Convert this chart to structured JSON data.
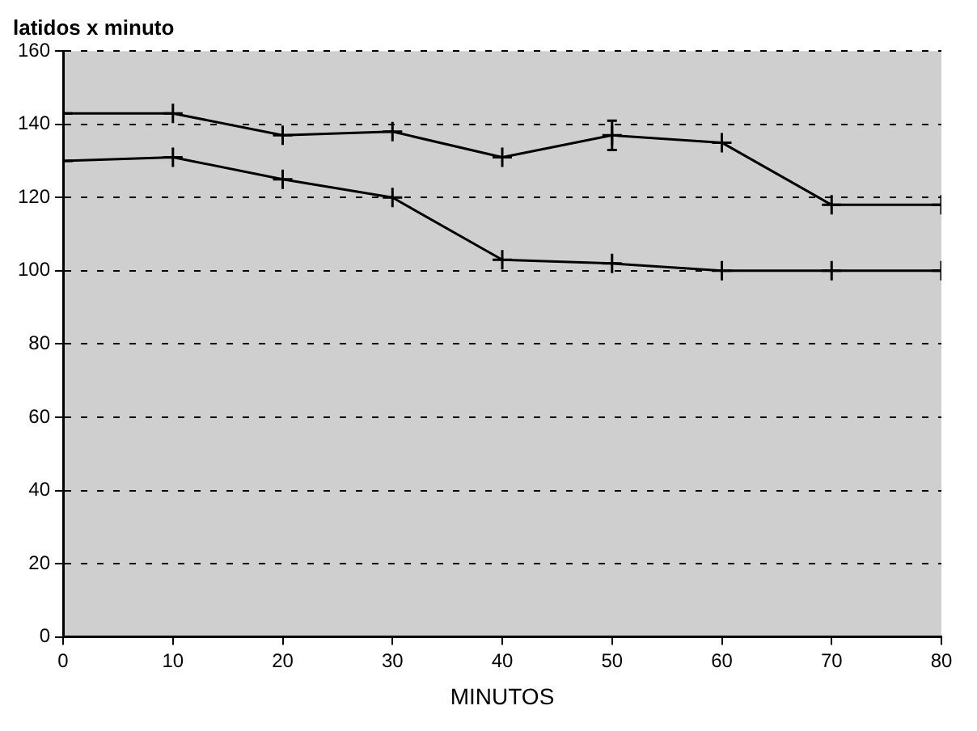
{
  "chart_data": {
    "type": "line",
    "ylabel": "latidos x minuto",
    "xlabel": "MINUTOS",
    "x": [
      0,
      10,
      20,
      30,
      40,
      50,
      60,
      70,
      80
    ],
    "series": [
      {
        "color": "#000000",
        "values": [
          143,
          143,
          137,
          138,
          131,
          137,
          135,
          118,
          118
        ],
        "errors": [
          null,
          null,
          null,
          null,
          null,
          4,
          null,
          null,
          null
        ]
      },
      {
        "color": "#000000",
        "values": [
          130,
          131,
          125,
          120,
          103,
          102,
          100,
          100,
          100
        ]
      }
    ],
    "xlim": [
      0,
      80
    ],
    "xticks": [
      0,
      10,
      20,
      30,
      40,
      50,
      60,
      70,
      80
    ],
    "ylim": [
      0,
      160
    ],
    "yticks": [
      0,
      20,
      40,
      60,
      80,
      100,
      120,
      140,
      160
    ],
    "grid": "y",
    "legend": false,
    "marker": "cross",
    "line_style": "solid"
  }
}
